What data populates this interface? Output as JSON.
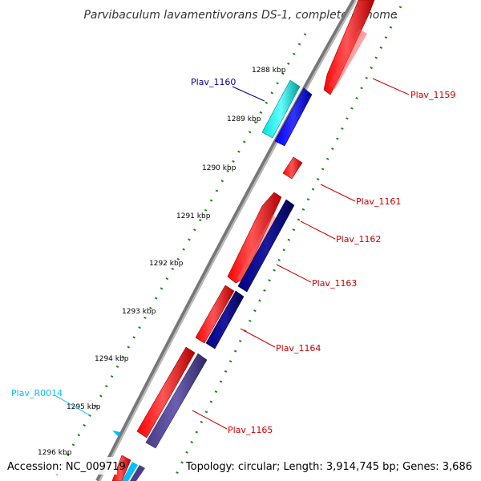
{
  "title": "Parvibaculum lavamentivorans DS-1, complete genome",
  "accession": "Accession: NC_009719",
  "topology": "Topology: circular; Length: 3,914,745 bp; Genes: 3,686",
  "ticks": [
    "1288 kbp",
    "1289 kbp",
    "1290 kbp",
    "1291 kbp",
    "1292 kbp",
    "1293 kbp",
    "1294 kbp",
    "1295 kbp",
    "1296 kbp"
  ],
  "genes": [
    {
      "label": "Plav_1159",
      "color": "#ff0000",
      "labelColor": "#cc0000"
    },
    {
      "label": "Plav_1160",
      "color": "#0000ee",
      "labelColor": "#000099"
    },
    {
      "label": "Plav_1161",
      "color": "#ff0000",
      "labelColor": "#cc0000"
    },
    {
      "label": "Plav_1162",
      "color": "#ff0000",
      "labelColor": "#cc0000"
    },
    {
      "label": "Plav_1163",
      "color": "#000080",
      "labelColor": "#cc0000"
    },
    {
      "label": "Plav_1164",
      "color": "#ff0000",
      "labelColor": "#cc0000"
    },
    {
      "label": "Plav_1165",
      "color": "#483d8b",
      "labelColor": "#cc0000"
    },
    {
      "label": "Plav_R0014",
      "color": "#00bfff",
      "labelColor": "#00bfff"
    }
  ]
}
